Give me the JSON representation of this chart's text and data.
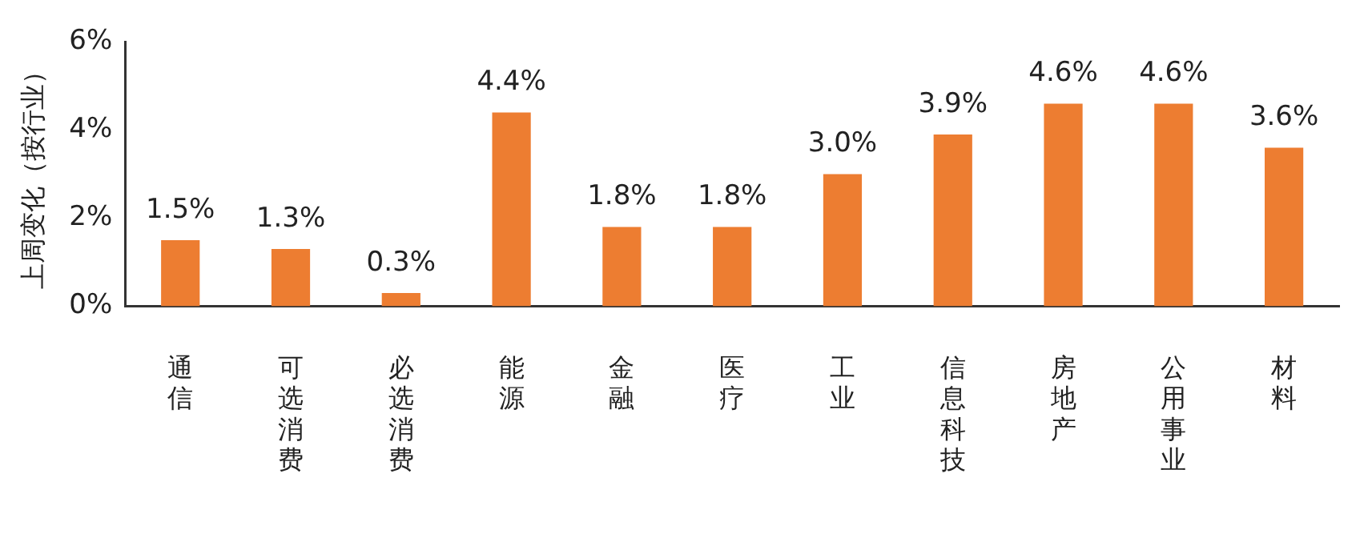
{
  "chart_data": {
    "type": "bar",
    "ylabel": "上周变化（按行业）",
    "categories": [
      "通信",
      "可选消费",
      "必选消费",
      "能源",
      "金融",
      "医疗",
      "工业",
      "信息科技",
      "房地产",
      "公用事业",
      "材料"
    ],
    "values": [
      1.5,
      1.3,
      0.3,
      4.4,
      1.8,
      1.8,
      3.0,
      3.9,
      4.6,
      4.6,
      3.6
    ],
    "value_labels": [
      "1.5%",
      "1.3%",
      "0.3%",
      "4.4%",
      "1.8%",
      "1.8%",
      "3.0%",
      "3.9%",
      "4.6%",
      "4.6%",
      "3.6%"
    ],
    "color": "#ed7d31",
    "ylim": [
      0,
      6
    ],
    "yticks": [
      {
        "value": 0,
        "label": "0%"
      },
      {
        "value": 2,
        "label": "2%"
      },
      {
        "value": 4,
        "label": "4%"
      },
      {
        "value": 6,
        "label": "6%"
      }
    ],
    "grid": false,
    "legend": false
  }
}
